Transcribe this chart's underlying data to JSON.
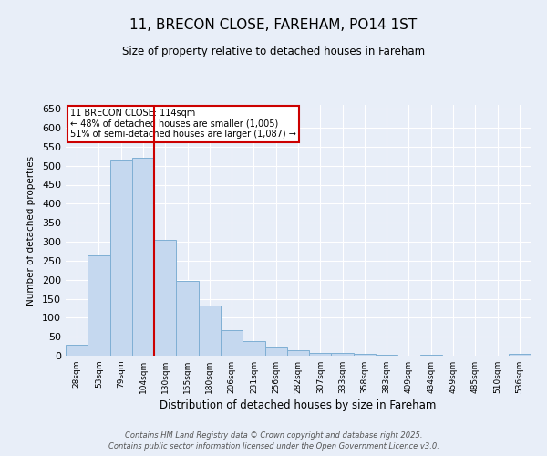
{
  "title": "11, BRECON CLOSE, FAREHAM, PO14 1ST",
  "subtitle": "Size of property relative to detached houses in Fareham",
  "xlabel": "Distribution of detached houses by size in Fareham",
  "ylabel": "Number of detached properties",
  "categories": [
    "28sqm",
    "53sqm",
    "79sqm",
    "104sqm",
    "130sqm",
    "155sqm",
    "180sqm",
    "206sqm",
    "231sqm",
    "256sqm",
    "282sqm",
    "307sqm",
    "333sqm",
    "358sqm",
    "383sqm",
    "409sqm",
    "434sqm",
    "459sqm",
    "485sqm",
    "510sqm",
    "536sqm"
  ],
  "values": [
    30,
    265,
    515,
    520,
    305,
    197,
    133,
    67,
    38,
    22,
    15,
    8,
    7,
    4,
    2,
    1,
    3,
    1,
    1,
    1,
    5
  ],
  "bar_color": "#c5d8ef",
  "bar_edge_color": "#7fafd4",
  "ylim": [
    0,
    660
  ],
  "yticks": [
    0,
    50,
    100,
    150,
    200,
    250,
    300,
    350,
    400,
    450,
    500,
    550,
    600,
    650
  ],
  "vline_x": 3,
  "annotation_title": "11 BRECON CLOSE: 114sqm",
  "annotation_line1": "← 48% of detached houses are smaller (1,005)",
  "annotation_line2": "51% of semi-detached houses are larger (1,087) →",
  "annotation_box_color": "#ffffff",
  "annotation_box_edge": "#cc0000",
  "vline_color": "#cc0000",
  "footnote1": "Contains HM Land Registry data © Crown copyright and database right 2025.",
  "footnote2": "Contains public sector information licensed under the Open Government Licence v3.0.",
  "background_color": "#e8eef8",
  "grid_color": "#ffffff"
}
